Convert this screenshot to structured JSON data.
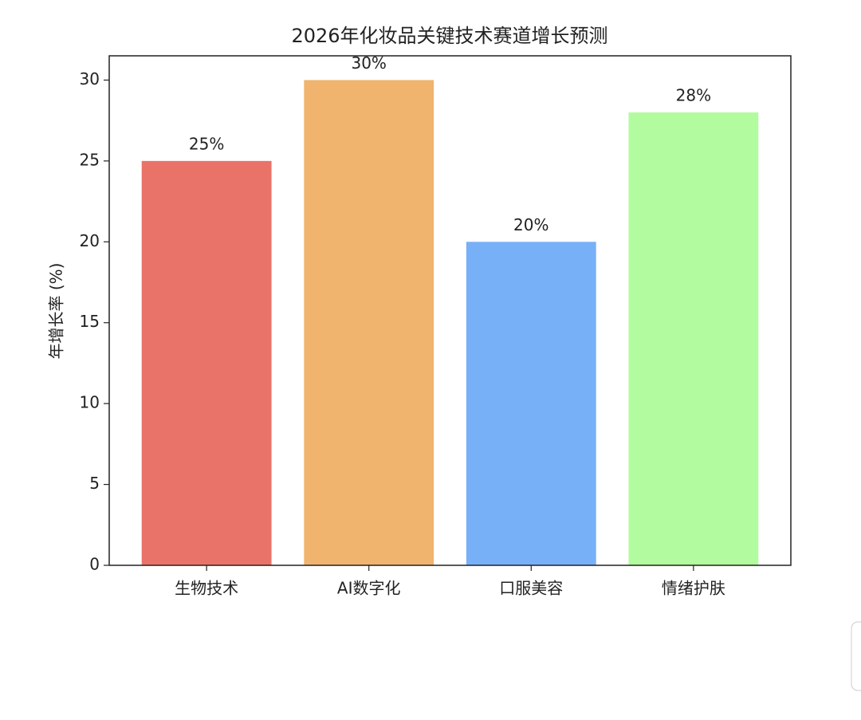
{
  "chart_data": {
    "type": "bar",
    "title": "2026年化妆品关键技术赛道增长预测",
    "ylabel": "年增长率 (%)",
    "categories": [
      "生物技术",
      "AI数字化",
      "口服美容",
      "情绪护肤"
    ],
    "values": [
      25,
      30,
      20,
      28
    ],
    "value_labels": [
      "25%",
      "30%",
      "20%",
      "28%"
    ],
    "colors": [
      "#ea7369",
      "#f0b46f",
      "#78b0f8",
      "#b2fb9f"
    ],
    "ylim": [
      0,
      31.5
    ],
    "yticks": [
      0,
      5,
      10,
      15,
      20,
      25,
      30
    ],
    "grid": false
  }
}
